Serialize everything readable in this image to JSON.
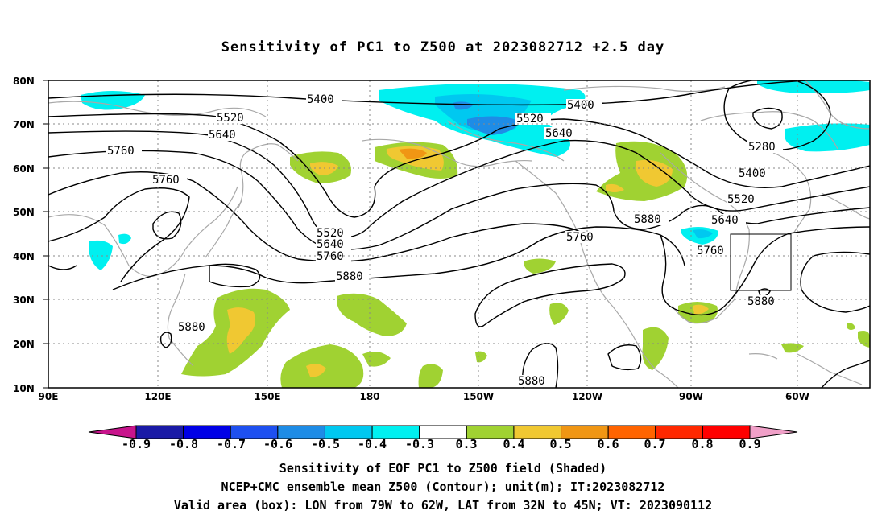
{
  "title": "Sensitivity of PC1 to Z500 at 2023082712 +2.5 day",
  "axes": {
    "lat_labels": [
      "80N",
      "70N",
      "60N",
      "50N",
      "40N",
      "30N",
      "20N",
      "10N"
    ],
    "lon_labels": [
      "90E",
      "120E",
      "150E",
      "180",
      "150W",
      "120W",
      "90W",
      "60W"
    ]
  },
  "contour_labels": {
    "c5400a": "5400",
    "c5400b": "5400",
    "c5400c": "5400",
    "c5520a": "5520",
    "c5520b": "5520",
    "c5520c": "5520",
    "c5520d": "5520",
    "c5640a": "5640",
    "c5640b": "5640",
    "c5640c": "5640",
    "c5640d": "5640",
    "c5760a": "5760",
    "c5760b": "5760",
    "c5760c": "5760",
    "c5760d": "5760",
    "c5760e": "5760",
    "c5880a": "5880",
    "c5880b": "5880",
    "c5880c": "5880",
    "c5880d": "5880",
    "c5880e": "5880",
    "c5280": "5280"
  },
  "colorbar": {
    "labels": [
      "-0.9",
      "-0.8",
      "-0.7",
      "-0.6",
      "-0.5",
      "-0.4",
      "-0.3",
      "0.3",
      "0.4",
      "0.5",
      "0.6",
      "0.7",
      "0.8",
      "0.9"
    ],
    "colors": [
      "#1a1aa6",
      "#0000e6",
      "#1e50f0",
      "#1e8ce6",
      "#00c8f0",
      "#00f0f0",
      "#ffffff",
      "#a0d232",
      "#f0c832",
      "#f09614",
      "#ff6400",
      "#ff2800",
      "#ff0000"
    ],
    "low_end_color": "#c8148c",
    "high_end_color": "#f0a0c8"
  },
  "captions": {
    "line1": "Sensitivity of EOF PC1 to Z500 field (Shaded)",
    "line2": "NCEP+CMC ensemble mean Z500 (Contour); unit(m); IT:2023082712",
    "line3": "Valid area (box): LON from 79W to 62W, LAT from 32N to 45N; VT: 2023090112"
  }
}
